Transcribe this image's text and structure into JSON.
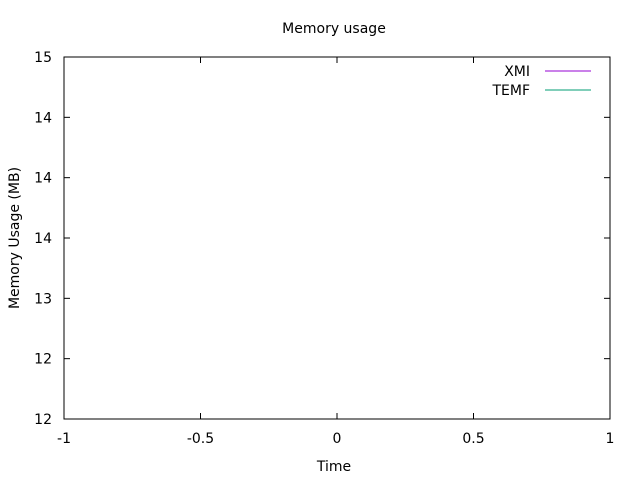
{
  "chart_data": {
    "type": "line",
    "title": "Memory usage",
    "xlabel": "Time",
    "ylabel": "Memory Usage (MB)",
    "xlim": [
      -1,
      1
    ],
    "ylim": [
      12,
      15
    ],
    "x_ticks": [
      {
        "value": -1,
        "label": "-1"
      },
      {
        "value": -0.5,
        "label": "-0.5"
      },
      {
        "value": 0,
        "label": "0"
      },
      {
        "value": 0.5,
        "label": "0.5"
      },
      {
        "value": 1,
        "label": "1"
      }
    ],
    "y_ticks": [
      {
        "value": 12,
        "label": "12"
      },
      {
        "value": 12.5,
        "label": "12"
      },
      {
        "value": 13,
        "label": "13"
      },
      {
        "value": 13.5,
        "label": "14"
      },
      {
        "value": 14,
        "label": "14"
      },
      {
        "value": 14.5,
        "label": "14"
      },
      {
        "value": 15,
        "label": "15"
      }
    ],
    "grid": false,
    "legend_position": "top-right",
    "series": [
      {
        "name": "XMI",
        "color": "#9400d3",
        "x": [],
        "y": []
      },
      {
        "name": "TEMF",
        "color": "#009e73",
        "x": [],
        "y": []
      }
    ]
  }
}
